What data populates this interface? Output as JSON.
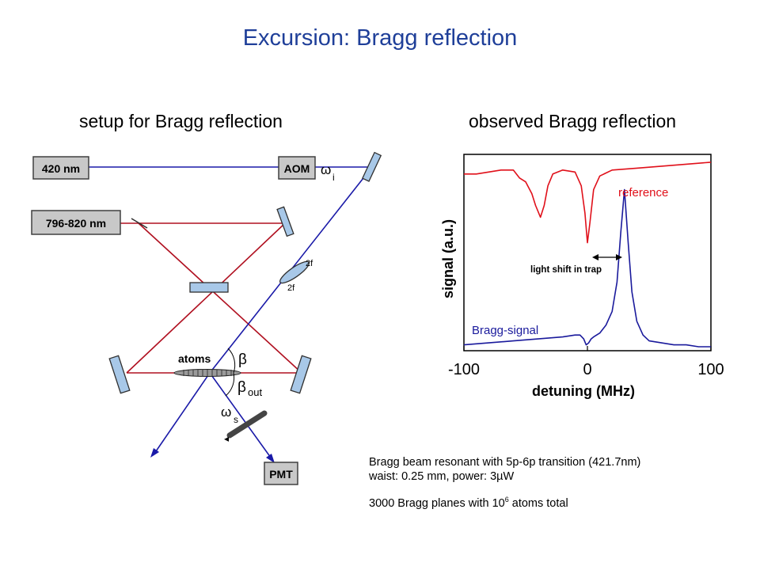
{
  "title": "Excursion: Bragg reflection",
  "setup": {
    "heading": "setup for Bragg reflection",
    "laser_blue_label": "420 nm",
    "laser_red_label": "796-820 nm",
    "aom_label": "AOM",
    "pmt_label": "PMT",
    "atoms_label": "atoms",
    "omega_i_main": "ω",
    "omega_i_sub": "i",
    "omega_s_main": "ω",
    "omega_s_sub": "s",
    "beta_label": "β",
    "beta_out_main": "β",
    "beta_out_sub": "out",
    "lens_label_a": "2f",
    "lens_label_b": "2f",
    "colors": {
      "blue_beam": "#1a1aa8",
      "red_beam": "#b01020",
      "optic_fill": "#a8c8e8"
    }
  },
  "observed": {
    "heading": "observed Bragg reflection",
    "ylabel": "signal (a.u.)",
    "xlabel": "detuning (MHz)",
    "x_ticks": [
      "-100",
      "0",
      "100"
    ],
    "reference_label": "reference",
    "bragg_label": "Bragg-signal",
    "annotation": "light shift in trap",
    "chart_data": {
      "type": "line",
      "xlabel": "detuning (MHz)",
      "ylabel": "signal (a.u.)",
      "xlim": [
        -100,
        100
      ],
      "x_ticks": [
        -100,
        0,
        100
      ],
      "series": [
        {
          "name": "reference",
          "color": "#e0101a",
          "x": [
            -100,
            -90,
            -80,
            -70,
            -60,
            -55,
            -50,
            -45,
            -42,
            -38,
            -35,
            -32,
            -28,
            -20,
            -10,
            -5,
            -2,
            0,
            2,
            5,
            10,
            20,
            40,
            60,
            80,
            100
          ],
          "y": [
            0.9,
            0.9,
            0.91,
            0.92,
            0.92,
            0.88,
            0.86,
            0.8,
            0.74,
            0.68,
            0.74,
            0.84,
            0.9,
            0.92,
            0.91,
            0.84,
            0.7,
            0.55,
            0.65,
            0.82,
            0.89,
            0.92,
            0.93,
            0.94,
            0.95,
            0.96
          ]
        },
        {
          "name": "Bragg-signal",
          "color": "#1a1a9c",
          "x": [
            -100,
            -80,
            -60,
            -40,
            -20,
            -10,
            -6,
            -3,
            -1,
            1,
            3,
            5,
            10,
            15,
            20,
            24,
            27,
            30,
            33,
            36,
            40,
            45,
            50,
            60,
            70,
            80,
            90,
            100
          ],
          "y": [
            0.03,
            0.04,
            0.05,
            0.06,
            0.07,
            0.08,
            0.08,
            0.06,
            0.03,
            0.04,
            0.06,
            0.07,
            0.09,
            0.13,
            0.2,
            0.35,
            0.6,
            0.82,
            0.55,
            0.3,
            0.15,
            0.08,
            0.05,
            0.04,
            0.03,
            0.03,
            0.02,
            0.02
          ]
        }
      ]
    }
  },
  "notes": {
    "line1": "Bragg beam resonant with 5p-6p transition (421.7nm)",
    "line2": "waist: 0.25 mm, power: 3µW",
    "line3_pre": "3000 Bragg planes with 10",
    "line3_sup": "6",
    "line3_post": " atoms total"
  }
}
